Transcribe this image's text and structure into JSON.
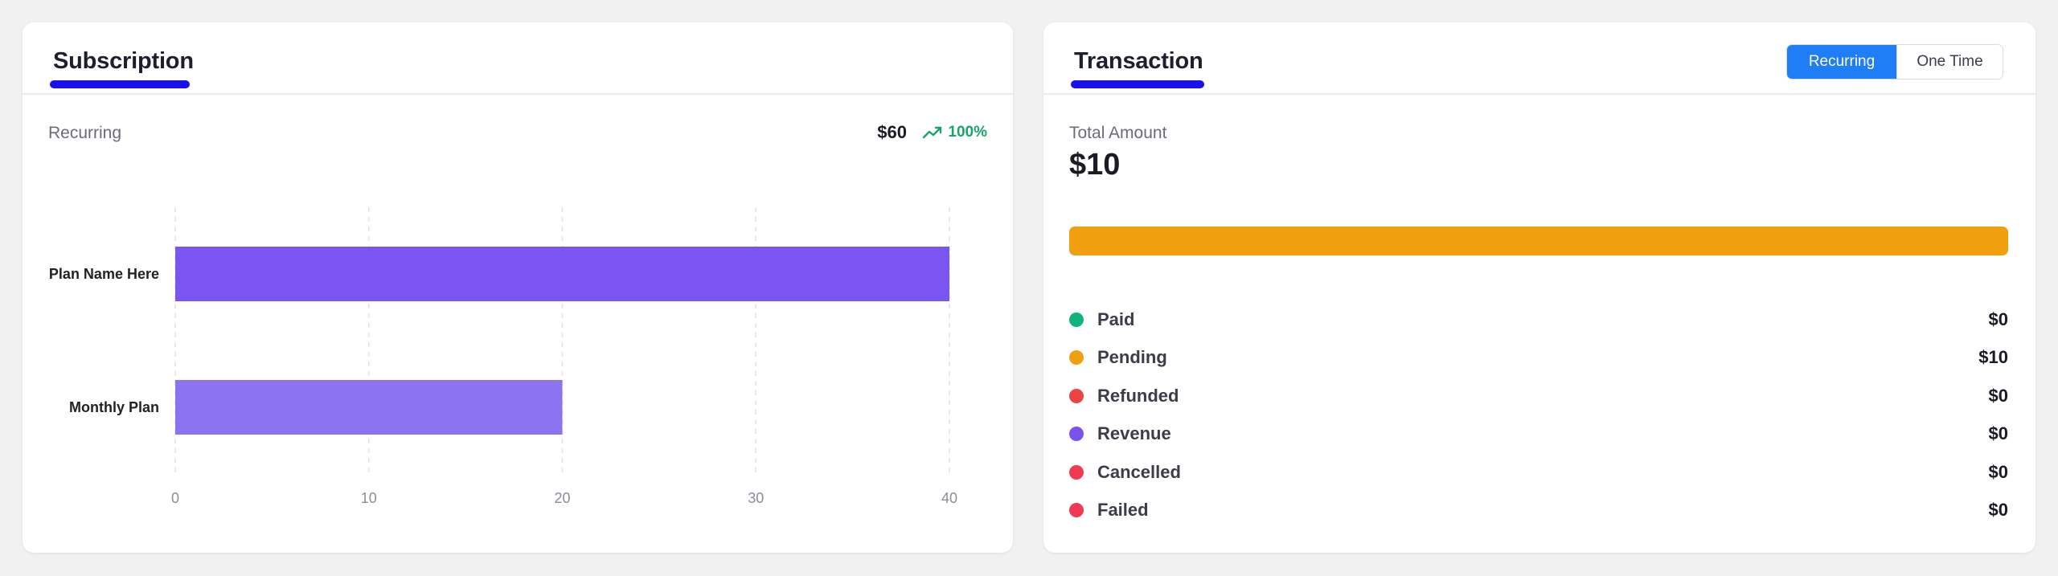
{
  "subscription": {
    "title": "Subscription",
    "label": "Recurring",
    "total": "$60",
    "trend_icon": "trending-up-icon",
    "trend_text": "100%",
    "colors": {
      "underline": "#1a10ea",
      "trend": "#17a56b"
    }
  },
  "chart_data": {
    "type": "bar",
    "orientation": "horizontal",
    "categories": [
      "Plan Name Here",
      "Monthly Plan"
    ],
    "values": [
      40,
      20
    ],
    "colors": [
      "#7b55ef",
      "#8c74f1"
    ],
    "xlim": [
      0,
      40
    ],
    "xticks": [
      "0",
      "10",
      "20",
      "30",
      "40"
    ],
    "grid": true,
    "title": "",
    "xlabel": "",
    "ylabel": ""
  },
  "transaction": {
    "title": "Transaction",
    "toggle": {
      "options": [
        "Recurring",
        "One Time"
      ],
      "selected": "Recurring"
    },
    "total_label": "Total Amount",
    "total_amount": "$10",
    "bar": [
      {
        "name": "Pending",
        "share": 1.0,
        "color": "#f0a00f"
      }
    ],
    "items": [
      {
        "name": "Paid",
        "value": "$0",
        "color": "#11b37c"
      },
      {
        "name": "Pending",
        "value": "$10",
        "color": "#f0a00f"
      },
      {
        "name": "Refunded",
        "value": "$0",
        "color": "#e84545"
      },
      {
        "name": "Revenue",
        "value": "$0",
        "color": "#7c52ef"
      },
      {
        "name": "Cancelled",
        "value": "$0",
        "color": "#f03a4f"
      },
      {
        "name": "Failed",
        "value": "$0",
        "color": "#f03a4f"
      }
    ]
  }
}
